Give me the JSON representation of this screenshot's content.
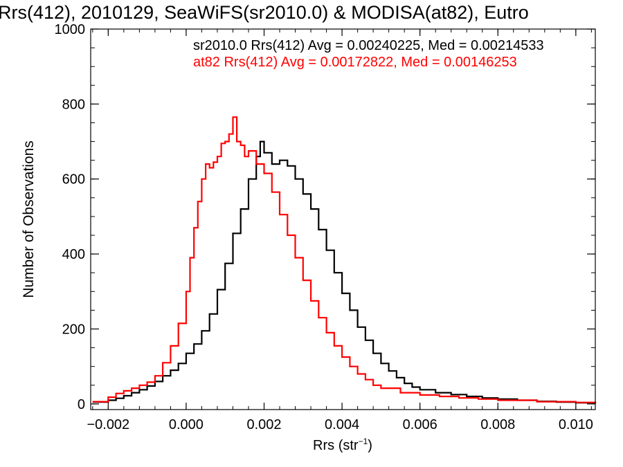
{
  "chart_data": {
    "type": "line",
    "step": true,
    "title": "Rrs(412), 2010129, SeaWiFS(sr2010.0) & MODISA(at82), Eutro",
    "xlabel_main": "Rrs (str",
    "xlabel_sup": "−1",
    "xlabel_close": ")",
    "ylabel": "Number of Observations",
    "xlim": [
      -0.00245,
      0.0105
    ],
    "ylim": [
      -15,
      1000
    ],
    "xticks": [
      -0.002,
      0.0,
      0.002,
      0.004,
      0.006,
      0.008,
      0.01
    ],
    "xtick_labels": [
      "−0.002",
      "0.000",
      "0.002",
      "0.004",
      "0.006",
      "0.008",
      "0.010"
    ],
    "yticks": [
      0,
      200,
      400,
      600,
      800,
      1000
    ],
    "ytick_labels": [
      "0",
      "200",
      "400",
      "600",
      "800",
      "1000"
    ],
    "grid": false,
    "legend_placement": "top-right",
    "series": [
      {
        "name": "sr2010.0",
        "label": "sr2010.0 Rrs(412) Avg = 0.00240225, Med = 0.00214533",
        "color": "#000000",
        "points": [
          [
            -0.0024,
            5
          ],
          [
            -0.002,
            10
          ],
          [
            -0.0018,
            15
          ],
          [
            -0.0016,
            22
          ],
          [
            -0.0014,
            30
          ],
          [
            -0.0012,
            38
          ],
          [
            -0.001,
            48
          ],
          [
            -0.0008,
            60
          ],
          [
            -0.0006,
            75
          ],
          [
            -0.0004,
            90
          ],
          [
            -0.0002,
            108
          ],
          [
            0.0,
            135
          ],
          [
            0.0002,
            160
          ],
          [
            0.0004,
            195
          ],
          [
            0.0006,
            240
          ],
          [
            0.0008,
            305
          ],
          [
            0.001,
            375
          ],
          [
            0.0012,
            455
          ],
          [
            0.0014,
            520
          ],
          [
            0.0016,
            600
          ],
          [
            0.0018,
            660
          ],
          [
            0.0019,
            700
          ],
          [
            0.002,
            670
          ],
          [
            0.0022,
            640
          ],
          [
            0.0024,
            650
          ],
          [
            0.0026,
            635
          ],
          [
            0.0028,
            600
          ],
          [
            0.003,
            560
          ],
          [
            0.0032,
            520
          ],
          [
            0.0034,
            465
          ],
          [
            0.0036,
            410
          ],
          [
            0.0038,
            350
          ],
          [
            0.004,
            295
          ],
          [
            0.0042,
            250
          ],
          [
            0.0044,
            205
          ],
          [
            0.0046,
            170
          ],
          [
            0.0048,
            135
          ],
          [
            0.005,
            108
          ],
          [
            0.0052,
            88
          ],
          [
            0.0054,
            70
          ],
          [
            0.0056,
            55
          ],
          [
            0.0058,
            45
          ],
          [
            0.006,
            38
          ],
          [
            0.0064,
            30
          ],
          [
            0.0068,
            25
          ],
          [
            0.0072,
            20
          ],
          [
            0.0076,
            16
          ],
          [
            0.008,
            13
          ],
          [
            0.0085,
            10
          ],
          [
            0.009,
            7
          ],
          [
            0.0095,
            5
          ],
          [
            0.01,
            3
          ],
          [
            0.0105,
            2
          ]
        ]
      },
      {
        "name": "at82",
        "label": "at82 Rrs(412) Avg = 0.00172822, Med = 0.00146253",
        "color": "#ff0000",
        "points": [
          [
            -0.0024,
            6
          ],
          [
            -0.002,
            18
          ],
          [
            -0.0018,
            28
          ],
          [
            -0.0016,
            35
          ],
          [
            -0.0014,
            42
          ],
          [
            -0.0012,
            50
          ],
          [
            -0.001,
            58
          ],
          [
            -0.0008,
            75
          ],
          [
            -0.0006,
            110
          ],
          [
            -0.0004,
            155
          ],
          [
            -0.0002,
            215
          ],
          [
            0.0,
            300
          ],
          [
            0.0001,
            390
          ],
          [
            0.0002,
            470
          ],
          [
            0.0003,
            540
          ],
          [
            0.0004,
            600
          ],
          [
            0.0005,
            640
          ],
          [
            0.0006,
            630
          ],
          [
            0.0007,
            645
          ],
          [
            0.0008,
            660
          ],
          [
            0.0009,
            695
          ],
          [
            0.001,
            700
          ],
          [
            0.0011,
            720
          ],
          [
            0.0012,
            765
          ],
          [
            0.0013,
            700
          ],
          [
            0.0014,
            690
          ],
          [
            0.0015,
            660
          ],
          [
            0.0016,
            675
          ],
          [
            0.0018,
            640
          ],
          [
            0.002,
            615
          ],
          [
            0.0022,
            565
          ],
          [
            0.0024,
            505
          ],
          [
            0.0026,
            450
          ],
          [
            0.0028,
            390
          ],
          [
            0.003,
            330
          ],
          [
            0.0032,
            275
          ],
          [
            0.0034,
            230
          ],
          [
            0.0036,
            190
          ],
          [
            0.0038,
            155
          ],
          [
            0.004,
            125
          ],
          [
            0.0042,
            100
          ],
          [
            0.0044,
            80
          ],
          [
            0.0046,
            65
          ],
          [
            0.0048,
            50
          ],
          [
            0.005,
            42
          ],
          [
            0.0055,
            30
          ],
          [
            0.006,
            24
          ],
          [
            0.0065,
            20
          ],
          [
            0.007,
            16
          ],
          [
            0.0075,
            13
          ],
          [
            0.008,
            10
          ],
          [
            0.009,
            6
          ],
          [
            0.01,
            4
          ],
          [
            0.0105,
            3
          ]
        ]
      }
    ]
  }
}
